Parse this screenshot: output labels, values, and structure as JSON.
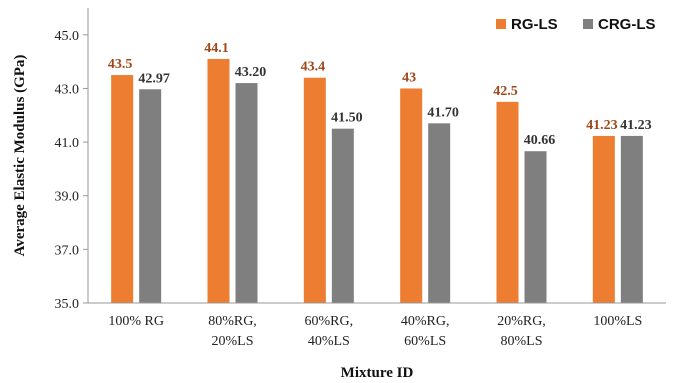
{
  "chart_data": {
    "type": "bar",
    "xlabel": "Mixture ID",
    "ylabel": "Average Elastic Modulus (GPa)",
    "ylim": [
      35.0,
      46.0
    ],
    "yticks": [
      35.0,
      37.0,
      39.0,
      41.0,
      43.0,
      45.0
    ],
    "ytick_labels": [
      "35.0",
      "37.0",
      "39.0",
      "41.0",
      "43.0",
      "45.0"
    ],
    "grid": false,
    "legend_position": "top-right",
    "categories": [
      [
        "100% RG"
      ],
      [
        "80%RG,",
        "20%LS"
      ],
      [
        "60%RG,",
        "40%LS"
      ],
      [
        "40%RG,",
        "60%LS"
      ],
      [
        "20%RG,",
        "80%LS"
      ],
      [
        "100%LS"
      ]
    ],
    "series": [
      {
        "name": "RG-LS",
        "color": "#ED7D31",
        "label_color": "#A0471A",
        "values": [
          43.5,
          44.1,
          43.4,
          43.0,
          42.5,
          41.23
        ],
        "labels": [
          "43.5",
          "44.1",
          "43.4",
          "43",
          "42.5",
          "41.23"
        ]
      },
      {
        "name": "CRG-LS",
        "color": "#7F7F7F",
        "label_color": "#333333",
        "values": [
          42.97,
          43.2,
          41.5,
          41.7,
          40.66,
          41.23
        ],
        "labels": [
          "42.97",
          "43.20",
          "41.50",
          "41.70",
          "40.66",
          "41.23"
        ]
      }
    ]
  }
}
